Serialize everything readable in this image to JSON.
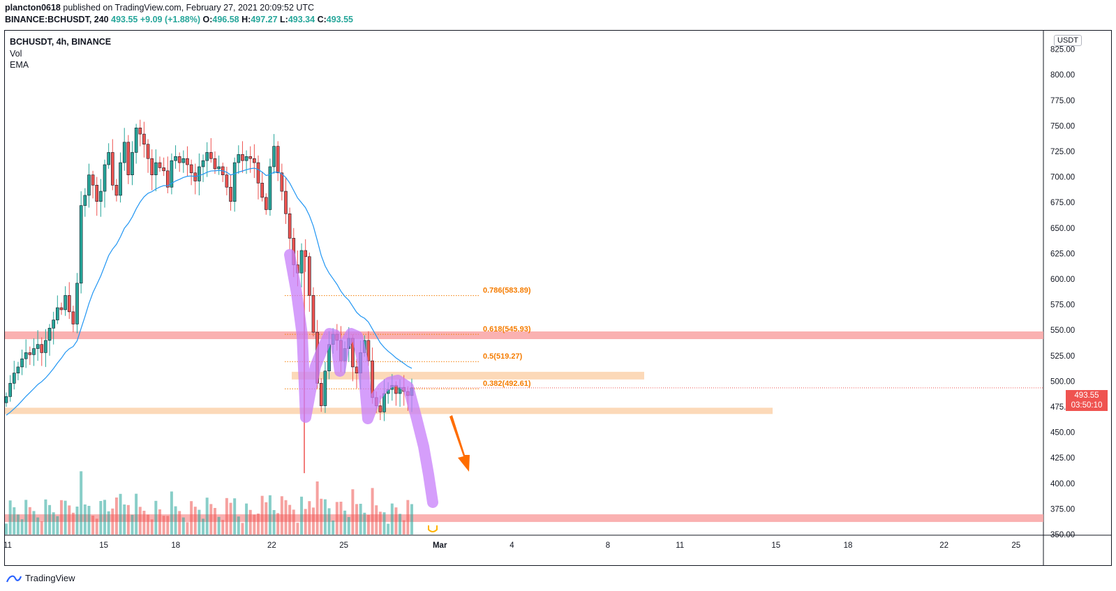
{
  "header": {
    "user": "plancton0618",
    "published": "published on TradingView.com, February 27, 2021 20:09:52 UTC",
    "symbol_line": "BINANCE:BCHUSDT, 240",
    "last": "493.55",
    "change": "+9.09 (+1.88%)",
    "o_label": "O:",
    "o": "496.58",
    "h_label": "H:",
    "h": "497.27",
    "l_label": "L:",
    "l": "493.34",
    "c_label": "C:",
    "c": "493.55"
  },
  "legend": {
    "symbol": "BCHUSDT, 4h, BINANCE",
    "vol": "Vol",
    "ema": "EMA"
  },
  "currency": "USDT",
  "price_tag": {
    "price": "493.55",
    "countdown": "03:50:10"
  },
  "footer": {
    "brand": "TradingView"
  },
  "colors": {
    "up": "#26a69a",
    "down": "#ef5350",
    "ema": "#2196f3",
    "fib": "#f57c00",
    "resistance": "#f9a3a3",
    "support": "#fcd5b0",
    "drawing": "#c77dfa",
    "arrow": "#ff6d00"
  },
  "chart_data": {
    "type": "candlestick",
    "symbol": "BCHUSDT",
    "interval": "4h",
    "exchange": "BINANCE",
    "ylim": [
      350,
      832
    ],
    "y_ticks": [
      "350.00",
      "375.00",
      "400.00",
      "425.00",
      "450.00",
      "475.00",
      "500.00",
      "525.00",
      "550.00",
      "575.00",
      "600.00",
      "625.00",
      "650.00",
      "675.00",
      "700.00",
      "725.00",
      "750.00",
      "775.00",
      "800.00",
      "825.00"
    ],
    "x_ticks": [
      {
        "label": "11",
        "day": 11
      },
      {
        "label": "15",
        "day": 15
      },
      {
        "label": "18",
        "day": 18
      },
      {
        "label": "22",
        "day": 22
      },
      {
        "label": "25",
        "day": 25
      },
      {
        "label": "Mar",
        "day": 29
      },
      {
        "label": "4",
        "day": 32
      },
      {
        "label": "8",
        "day": 36
      },
      {
        "label": "11",
        "day": 39
      },
      {
        "label": "15",
        "day": 43
      },
      {
        "label": "18",
        "day": 46
      },
      {
        "label": "22",
        "day": 50
      },
      {
        "label": "25",
        "day": 53
      }
    ],
    "candle_closes": [
      485,
      498,
      508,
      514,
      522,
      528,
      526,
      532,
      536,
      528,
      540,
      552,
      560,
      572,
      570,
      584,
      568,
      556,
      596,
      672,
      682,
      702,
      692,
      676,
      686,
      712,
      724,
      692,
      682,
      714,
      734,
      702,
      724,
      748,
      742,
      732,
      718,
      702,
      714,
      709,
      706,
      690,
      716,
      720,
      714,
      718,
      712,
      704,
      696,
      710,
      716,
      724,
      718,
      708,
      710,
      702,
      690,
      676,
      714,
      722,
      716,
      720,
      718,
      714,
      694,
      680,
      668,
      710,
      730,
      704,
      686,
      664,
      640,
      614,
      606,
      628,
      622,
      584,
      548,
      498,
      476,
      510,
      536,
      546,
      540,
      520,
      532,
      542,
      514,
      508,
      528,
      540,
      520,
      484,
      476,
      470,
      488,
      492,
      496,
      488,
      494,
      490,
      486,
      493.55
    ],
    "ema_start_day": 11,
    "fib_levels": [
      {
        "label": "0.786(583.89)",
        "price": 583.89
      },
      {
        "label": "0.618(545.93)",
        "price": 545.93
      },
      {
        "label": "0.5(519.27)",
        "price": 519.27
      },
      {
        "label": "0.382(492.61)",
        "price": 492.61
      }
    ],
    "zones": [
      {
        "kind": "resistance",
        "price": 545
      },
      {
        "kind": "resistance",
        "price": 366
      },
      {
        "kind": "support",
        "price": 505.5
      },
      {
        "kind": "support",
        "price": 471
      }
    ],
    "volume": true
  }
}
